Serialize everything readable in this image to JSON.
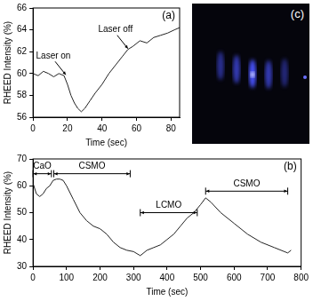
{
  "chart_data": [
    {
      "type": "line",
      "panel_label": "(a)",
      "x_label": "Time (sec)",
      "y_label": "RHEED Intensity (%)",
      "color": "#222222",
      "grid": false,
      "xlim": [
        0,
        85
      ],
      "ylim": [
        56,
        66
      ],
      "xticks": [
        0,
        20,
        40,
        60,
        80
      ],
      "yticks": [
        56,
        58,
        60,
        62,
        64,
        66
      ],
      "x": [
        0,
        3,
        6,
        9,
        12,
        15,
        18,
        20,
        22,
        24,
        26,
        28,
        30,
        33,
        36,
        40,
        44,
        48,
        52,
        55,
        58,
        62,
        66,
        70,
        74,
        78,
        82,
        85
      ],
      "values": [
        60,
        59.8,
        60.2,
        60,
        59.7,
        60,
        59.8,
        59,
        58,
        57.3,
        56.8,
        56.5,
        56.8,
        57.5,
        58.2,
        59,
        60,
        60.8,
        61.6,
        62.2,
        62.5,
        63,
        62.8,
        63.3,
        63.5,
        63.7,
        64,
        64.2
      ],
      "annotations": [
        {
          "text": "Laser on",
          "x": 19,
          "y": 59.8
        },
        {
          "text": "Laser off",
          "x": 55,
          "y": 62.2
        }
      ]
    },
    {
      "type": "image",
      "panel_label": "(c)"
    },
    {
      "type": "line",
      "panel_label": "(b)",
      "x_label": "Time (sec)",
      "y_label": "RHEED Intensity (%)",
      "color": "#222222",
      "grid": false,
      "xlim": [
        0,
        800
      ],
      "ylim": [
        30,
        70
      ],
      "xticks": [
        0,
        100,
        200,
        300,
        400,
        500,
        600,
        700,
        800
      ],
      "yticks": [
        30,
        40,
        50,
        60,
        70
      ],
      "x": [
        0,
        10,
        20,
        30,
        40,
        50,
        60,
        70,
        80,
        90,
        100,
        120,
        140,
        160,
        180,
        200,
        220,
        240,
        260,
        280,
        300,
        320,
        340,
        360,
        380,
        400,
        420,
        440,
        460,
        480,
        500,
        515,
        530,
        560,
        600,
        640,
        680,
        720,
        760,
        770
      ],
      "values": [
        61,
        57,
        56,
        57,
        59,
        60,
        62,
        62.5,
        62.5,
        62,
        60,
        55,
        50,
        47,
        45,
        44,
        42,
        39,
        37,
        36,
        35.5,
        34,
        36,
        37,
        38,
        40,
        42,
        45,
        48,
        50,
        53,
        55.5,
        54,
        50,
        46,
        42,
        39,
        37,
        35,
        36
      ],
      "segments": [
        {
          "text": "CaO",
          "start": 0,
          "end": 55,
          "y": 64.5
        },
        {
          "text": "CSMO",
          "start": 62,
          "end": 290,
          "y": 64.5
        },
        {
          "text": "LCMO",
          "start": 320,
          "end": 490,
          "y": 50
        },
        {
          "text": "CSMO",
          "start": 515,
          "end": 760,
          "y": 58
        }
      ]
    }
  ]
}
